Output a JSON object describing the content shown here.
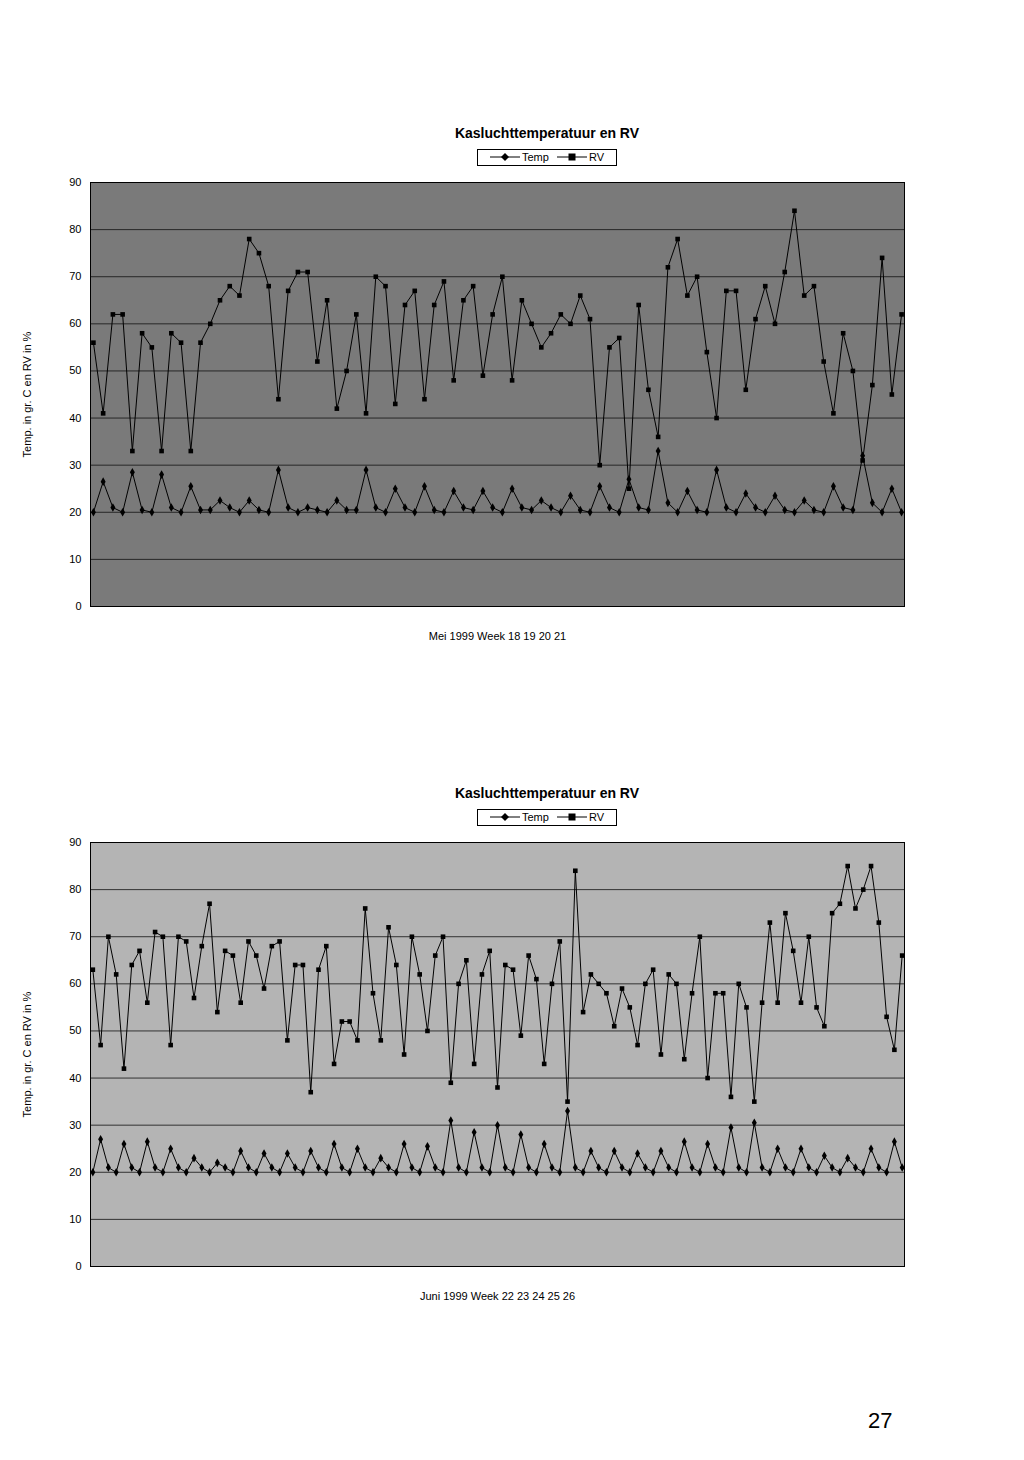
{
  "chart_data": [
    {
      "type": "line",
      "title": "Kasluchttemperatuur en RV",
      "x_label": "Mei 1999 Week 18 19 20 21",
      "y_label": "Temp. in gr. C en RV in %",
      "ylim": [
        0,
        90
      ],
      "yticks": [
        0,
        10,
        20,
        30,
        40,
        50,
        60,
        70,
        80,
        90
      ],
      "grid": true,
      "legend": "top",
      "tick_labels": "y",
      "categories": [
        null,
        null,
        null,
        null,
        null,
        null,
        null,
        null,
        null,
        null,
        null,
        null,
        null,
        null,
        null,
        null,
        null,
        null,
        null,
        null,
        null,
        null,
        null,
        null,
        null,
        null,
        null,
        null,
        null,
        null,
        null,
        null,
        null,
        null,
        null,
        null,
        null,
        null,
        null,
        null,
        null,
        null,
        null,
        null,
        null,
        null,
        null,
        null,
        null,
        null,
        null,
        null,
        null,
        null,
        null,
        null,
        null,
        null,
        null,
        null,
        null,
        null,
        null,
        null,
        null,
        null,
        null,
        null,
        null,
        null,
        null,
        null,
        null,
        null,
        null,
        null,
        null,
        null,
        null,
        null,
        null,
        null,
        null,
        null
      ],
      "series": [
        {
          "name": "Temp",
          "color": "#000000",
          "marker": "diamond",
          "values": [
            20,
            26.5,
            21,
            20,
            28.5,
            20.5,
            20,
            28,
            21,
            20,
            25.5,
            20.5,
            20.5,
            22.5,
            21,
            20,
            22.5,
            20.5,
            20,
            29,
            21,
            20,
            21,
            20.5,
            20,
            22.5,
            20.5,
            20.5,
            29,
            21,
            20,
            25,
            21,
            20,
            25.5,
            20.5,
            20,
            24.5,
            21,
            20.5,
            24.5,
            21,
            20,
            25,
            21,
            20.5,
            22.5,
            21,
            20,
            23.5,
            20.5,
            20,
            25.5,
            21,
            20,
            27,
            21,
            20.5,
            33,
            22,
            20,
            24.5,
            20.5,
            20,
            29,
            21,
            20,
            24,
            21,
            20,
            23.5,
            20.5,
            20,
            22.5,
            20.5,
            20,
            25.5,
            21,
            20.5,
            32,
            22,
            20,
            25,
            20
          ]
        },
        {
          "name": "RV",
          "color": "#000000",
          "marker": "square",
          "values": [
            56,
            41,
            62,
            62,
            33,
            58,
            55,
            33,
            58,
            56,
            33,
            56,
            60,
            65,
            68,
            66,
            78,
            75,
            68,
            44,
            67,
            71,
            71,
            52,
            65,
            42,
            50,
            62,
            41,
            70,
            68,
            43,
            64,
            67,
            44,
            64,
            69,
            48,
            65,
            68,
            49,
            62,
            70,
            48,
            65,
            60,
            55,
            58,
            62,
            60,
            66,
            61,
            30,
            55,
            57,
            25,
            64,
            46,
            36,
            72,
            78,
            66,
            70,
            54,
            40,
            67,
            67,
            46,
            61,
            68,
            60,
            71,
            84,
            66,
            68,
            52,
            41,
            58,
            50,
            31,
            47,
            74,
            45,
            62
          ]
        }
      ]
    },
    {
      "type": "line",
      "title": "Kasluchttemperatuur en RV",
      "x_label": "Juni 1999 Week 22 23 24 25 26",
      "y_label": "Temp. in gr. C en RV in %",
      "ylim": [
        0,
        90
      ],
      "yticks": [
        0,
        10,
        20,
        30,
        40,
        50,
        60,
        70,
        80,
        90
      ],
      "grid": true,
      "legend": "top",
      "tick_labels": "y",
      "categories": [
        null,
        null,
        null,
        null,
        null,
        null,
        null,
        null,
        null,
        null,
        null,
        null,
        null,
        null,
        null,
        null,
        null,
        null,
        null,
        null,
        null,
        null,
        null,
        null,
        null,
        null,
        null,
        null,
        null,
        null,
        null,
        null,
        null,
        null,
        null,
        null,
        null,
        null,
        null,
        null,
        null,
        null,
        null,
        null,
        null,
        null,
        null,
        null,
        null,
        null,
        null,
        null,
        null,
        null,
        null,
        null,
        null,
        null,
        null,
        null,
        null,
        null,
        null,
        null,
        null,
        null,
        null,
        null,
        null,
        null,
        null,
        null,
        null,
        null,
        null,
        null,
        null,
        null,
        null,
        null,
        null,
        null,
        null,
        null,
        null,
        null,
        null,
        null,
        null,
        null,
        null,
        null,
        null,
        null,
        null,
        null,
        null,
        null,
        null,
        null,
        null,
        null,
        null,
        null,
        null
      ],
      "series": [
        {
          "name": "Temp",
          "color": "#000000",
          "marker": "diamond",
          "values": [
            20,
            27,
            21,
            20,
            26,
            21,
            20,
            26.5,
            21,
            20,
            25,
            21,
            20,
            23,
            21,
            20,
            22,
            21,
            20,
            24.5,
            21,
            20,
            24,
            21,
            20,
            24,
            21,
            20,
            24.5,
            21,
            20,
            26,
            21,
            20,
            25,
            21,
            20,
            23,
            21,
            20,
            26,
            21,
            20,
            25.5,
            21,
            20,
            31,
            21,
            20,
            28.5,
            21,
            20,
            30,
            21,
            20,
            28,
            21,
            20,
            26,
            21,
            20,
            33,
            21,
            20,
            24.5,
            21,
            20,
            24.5,
            21,
            20,
            24,
            21,
            20,
            24.5,
            21,
            20,
            26.5,
            21,
            20,
            26,
            21,
            20,
            29.5,
            21,
            20,
            30.5,
            21,
            20,
            25,
            21,
            20,
            25,
            21,
            20,
            23.5,
            21,
            20,
            23,
            21,
            20,
            25,
            21,
            20,
            26.5,
            21
          ]
        },
        {
          "name": "RV",
          "color": "#000000",
          "marker": "square",
          "values": [
            63,
            47,
            70,
            62,
            42,
            64,
            67,
            56,
            71,
            70,
            47,
            70,
            69,
            57,
            68,
            77,
            54,
            67,
            66,
            56,
            69,
            66,
            59,
            68,
            69,
            48,
            64,
            64,
            37,
            63,
            68,
            43,
            52,
            52,
            48,
            76,
            58,
            48,
            72,
            64,
            45,
            70,
            62,
            50,
            66,
            70,
            39,
            60,
            65,
            43,
            62,
            67,
            38,
            64,
            63,
            49,
            66,
            61,
            43,
            60,
            69,
            35,
            84,
            54,
            62,
            60,
            58,
            51,
            59,
            55,
            47,
            60,
            63,
            45,
            62,
            60,
            44,
            58,
            70,
            40,
            58,
            58,
            36,
            60,
            55,
            35,
            56,
            73,
            56,
            75,
            67,
            56,
            70,
            55,
            51,
            75,
            77,
            85,
            76,
            80,
            85,
            73,
            53,
            46,
            66
          ]
        }
      ]
    }
  ],
  "page_number": "27"
}
